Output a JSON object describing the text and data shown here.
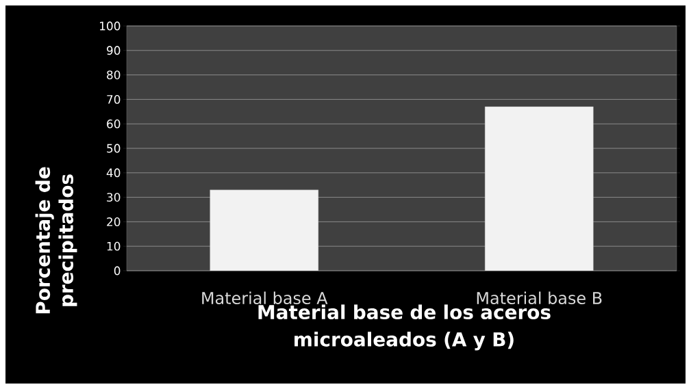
{
  "chart_data": {
    "type": "bar",
    "xlabel": "Material base de los aceros microaleados (A y B)",
    "ylabel": "Porcentaje de precipitados",
    "categories": [
      "Material base A",
      "Material base B"
    ],
    "values": [
      33,
      67
    ],
    "color": "#f2f2f2",
    "ylim": [
      0,
      100
    ],
    "yticks": [
      0,
      10,
      20,
      30,
      40,
      50,
      60,
      70,
      80,
      90,
      100
    ],
    "grid": "y"
  }
}
